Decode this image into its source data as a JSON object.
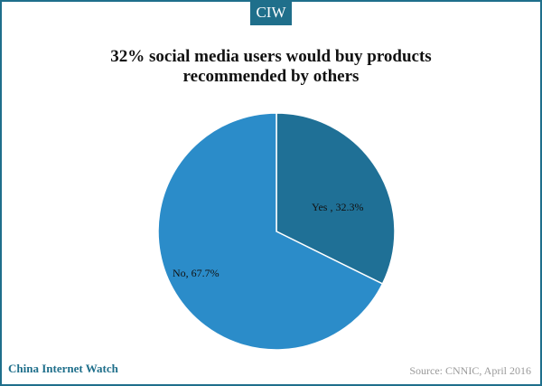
{
  "brand": {
    "logo_text": "CIW",
    "color": "#1f6f8b"
  },
  "footer": {
    "left": "China Internet Watch",
    "right": "Source: CNNIC, April 2016"
  },
  "chart_data": {
    "type": "pie",
    "title_lines": [
      "32% social media users would buy products",
      "recommended by others"
    ],
    "slices": [
      {
        "label": "Yes , 32.3%",
        "value": 32.3,
        "color": "#1f7096"
      },
      {
        "label": "No, 67.7%",
        "value": 67.7,
        "color": "#2b8cc9"
      }
    ],
    "start_angle": "12 o'clock, clockwise",
    "legend": "none (data labels inside slices)"
  }
}
